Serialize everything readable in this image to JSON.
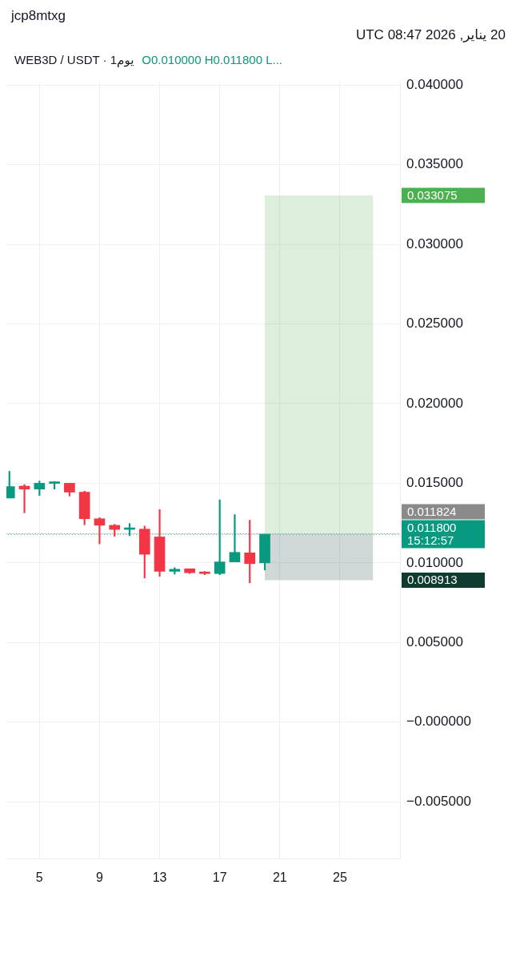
{
  "chart_data": {
    "type": "candlestick",
    "title": "WEB3D / USDT · 1يوم",
    "subtitle": "20 يناير, 2026 08:47 UTC",
    "annotations": [
      "jcp8mtxg",
      "O0.010000 H0.011800 L..."
    ],
    "x": [
      3,
      4,
      5,
      6,
      7,
      8,
      9,
      10,
      11,
      12,
      13,
      14,
      15,
      16,
      17,
      18,
      19,
      20
    ],
    "ohlc": [
      [
        0.01407,
        0.01575,
        0.01407,
        0.01479
      ],
      [
        0.01482,
        0.01492,
        0.01314,
        0.01463
      ],
      [
        0.01463,
        0.01514,
        0.01423,
        0.015
      ],
      [
        0.01499,
        0.01511,
        0.01463,
        0.01501
      ],
      [
        0.015,
        0.015,
        0.0142,
        0.01444
      ],
      [
        0.01444,
        0.0145,
        0.01239,
        0.01277
      ],
      [
        0.01277,
        0.01284,
        0.01119,
        0.01236
      ],
      [
        0.01236,
        0.01242,
        0.01167,
        0.0121
      ],
      [
        0.0121,
        0.01247,
        0.0117,
        0.01213
      ],
      [
        0.01212,
        0.01231,
        0.00905,
        0.01054
      ],
      [
        0.01163,
        0.01335,
        0.00915,
        0.00947
      ],
      [
        0.00947,
        0.0097,
        0.00929,
        0.0096
      ],
      [
        0.00963,
        0.00963,
        0.00933,
        0.00938
      ],
      [
        0.00941,
        0.00946,
        0.00926,
        0.00933
      ],
      [
        0.00933,
        0.01396,
        0.00926,
        0.01006
      ],
      [
        0.01006,
        0.01303,
        0.01006,
        0.01066
      ],
      [
        0.01063,
        0.01268,
        0.00874,
        0.00995
      ],
      [
        0.01,
        0.0118,
        0.00955,
        0.0118
      ]
    ],
    "colors": [
      "#089981",
      "#f23645",
      "#089981",
      "#089981",
      "#f23645",
      "#f23645",
      "#f23645",
      "#f23645",
      "#089981",
      "#f23645",
      "#f23645",
      "#089981",
      "#f23645",
      "#f23645",
      "#089981",
      "#089981",
      "#f23645",
      "#089981"
    ],
    "xlim": [
      2.8,
      29
    ],
    "xticks": [
      5,
      9,
      13,
      17,
      21,
      25
    ],
    "ylim": [
      -0.0086,
      0.0402
    ],
    "yticks": [
      {
        "value": -0.005,
        "label": "−0.005000"
      },
      {
        "value": 0,
        "label": "−0.000000"
      },
      {
        "value": 0.005,
        "label": "0.005000"
      },
      {
        "value": 0.01,
        "label": "0.010000"
      },
      {
        "value": 0.015,
        "label": "0.015000"
      },
      {
        "value": 0.02,
        "label": "0.020000"
      },
      {
        "value": 0.025,
        "label": "0.025000"
      },
      {
        "value": 0.03,
        "label": "0.030000"
      },
      {
        "value": 0.035,
        "label": "0.035000"
      },
      {
        "value": 0.04,
        "label": "0.040000"
      }
    ],
    "grid": true,
    "bands": [
      {
        "axis": "y",
        "from": 0.0118,
        "to": 0.033075,
        "label": "0.033075",
        "color": "#4caf50"
      },
      {
        "axis": "y",
        "from": 0.008913,
        "to": 0.0118,
        "label": "0.008913",
        "color": "#0f3b30"
      }
    ],
    "ref_lines": [
      {
        "axis": "y",
        "value": 0.011824,
        "label": "0.011824",
        "color": "#8a8a8a",
        "line_style": "dotted"
      },
      {
        "axis": "y",
        "value": 0.0118,
        "label": "0.011800\n15:12:57",
        "color": "#089981",
        "line_style": "dotted"
      }
    ]
  }
}
